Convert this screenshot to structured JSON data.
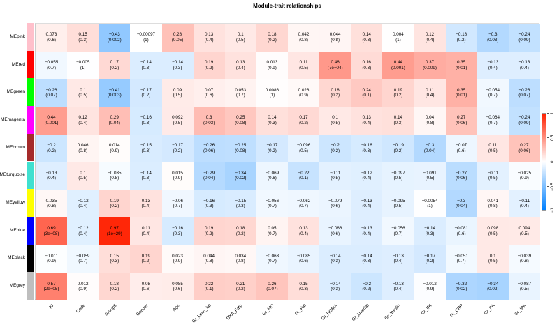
{
  "chart_data": {
    "type": "heatmap",
    "title": "Module-trait relationships",
    "rows": [
      "MEpink",
      "MEred",
      "MEgreen",
      "MEmagenta",
      "MEbrown",
      "MEturquoise",
      "MEyellow",
      "MEblue",
      "MEblack",
      "MEgrey"
    ],
    "row_colors": [
      "#FFC0CB",
      "#FF0000",
      "#00FF00",
      "#FF00FF",
      "#A52A2A",
      "#40E0D0",
      "#FFFF00",
      "#0000FF",
      "#000000",
      "#BEBEBE"
    ],
    "columns": [
      "ID",
      "Code",
      "Group5",
      "Gender",
      "Age",
      "Gr_Lean_fat",
      "DXA_Fatp",
      "Gr_MD",
      "Gr_Fat",
      "Gr_HOMA",
      "Gr_Liverfat",
      "Gr_Insulin",
      "Gr_IRI",
      "Gr_CRP",
      "Gr_PA",
      "Gr_IPA"
    ],
    "values": [
      [
        0.073,
        0.15,
        -0.43,
        -0.00097,
        0.28,
        0.13,
        0.1,
        0.18,
        0.042,
        0.044,
        0.14,
        0.004,
        0.12,
        -0.18,
        -0.3,
        -0.24
      ],
      [
        -0.055,
        -0.005,
        0.17,
        -0.14,
        -0.14,
        0.19,
        0.13,
        0.013,
        0.11,
        0.46,
        0.16,
        0.44,
        0.37,
        0.35,
        -0.13,
        -0.13
      ],
      [
        -0.26,
        0.1,
        -0.41,
        -0.17,
        0.09,
        0.07,
        0.053,
        0.0086,
        0.026,
        0.18,
        0.24,
        0.19,
        0.11,
        0.35,
        -0.054,
        -0.26
      ],
      [
        0.44,
        0.12,
        0.29,
        -0.16,
        0.092,
        0.3,
        0.25,
        0.14,
        0.17,
        0.1,
        0.13,
        0.14,
        0.04,
        0.27,
        -0.064,
        -0.24
      ],
      [
        -0.2,
        0.046,
        0.014,
        -0.15,
        -0.17,
        -0.26,
        -0.25,
        -0.17,
        -0.096,
        -0.2,
        -0.16,
        -0.19,
        -0.3,
        -0.07,
        0.11,
        0.27
      ],
      [
        -0.13,
        0.1,
        -0.035,
        -0.14,
        0.015,
        -0.29,
        -0.34,
        -0.069,
        -0.22,
        -0.11,
        -0.12,
        -0.097,
        -0.091,
        -0.27,
        -0.11,
        -0.025
      ],
      [
        0.035,
        -0.12,
        0.19,
        0.13,
        -0.06,
        -0.16,
        -0.15,
        -0.056,
        -0.062,
        -0.079,
        -0.13,
        -0.095,
        -0.0054,
        -0.3,
        0.041,
        -0.11
      ],
      [
        0.69,
        -0.12,
        0.97,
        0.11,
        -0.16,
        0.19,
        0.18,
        0.05,
        0.13,
        -0.086,
        -0.13,
        -0.056,
        -0.14,
        -0.081,
        0.098,
        0.094
      ],
      [
        -0.011,
        -0.059,
        0.15,
        0.19,
        0.023,
        0.044,
        0.034,
        -0.063,
        -0.085,
        -0.14,
        -0.14,
        -0.13,
        -0.17,
        -0.051,
        0.1,
        -0.039
      ],
      [
        0.57,
        0.012,
        0.18,
        0.08,
        0.085,
        0.22,
        0.21,
        0.26,
        0.15,
        -0.14,
        -0.2,
        -0.13,
        -0.012,
        -0.32,
        -0.34,
        -0.087
      ]
    ],
    "pvalues": [
      [
        "0.6",
        "0.3",
        "0.002",
        "1",
        "0.05",
        "0.4",
        "0.5",
        "0.2",
        "0.8",
        "0.8",
        "0.3",
        "1",
        "0.4",
        "0.2",
        "0.03",
        "0.09"
      ],
      [
        "0.7",
        "1",
        "0.2",
        "0.3",
        "0.3",
        "0.2",
        "0.4",
        "0.9",
        "0.5",
        "7e-04",
        "0.3",
        "0.001",
        "0.009",
        "0.01",
        "0.4",
        "0.4"
      ],
      [
        "0.07",
        "0.5",
        "0.003",
        "0.2",
        "0.5",
        "0.6",
        "0.7",
        "1",
        "0.9",
        "0.2",
        "0.1",
        "0.2",
        "0.4",
        "0.01",
        "0.7",
        "0.07"
      ],
      [
        "0.001",
        "0.4",
        "0.04",
        "0.3",
        "0.5",
        "0.03",
        "0.08",
        "0.3",
        "0.2",
        "0.5",
        "0.4",
        "0.3",
        "0.8",
        "0.06",
        "0.7",
        "0.09"
      ],
      [
        "0.2",
        "0.8",
        "0.9",
        "0.3",
        "0.2",
        "0.06",
        "0.08",
        "0.2",
        "0.5",
        "0.2",
        "0.3",
        "0.2",
        "0.04",
        "0.6",
        "0.5",
        "0.06"
      ],
      [
        "0.4",
        "0.5",
        "0.8",
        "0.3",
        "0.9",
        "0.04",
        "0.02",
        "0.6",
        "0.1",
        "0.5",
        "0.4",
        "0.5",
        "0.5",
        "0.06",
        "0.5",
        "0.9"
      ],
      [
        "0.8",
        "0.4",
        "0.2",
        "0.4",
        "0.7",
        "0.3",
        "0.3",
        "0.7",
        "0.7",
        "0.6",
        "0.4",
        "0.5",
        "1",
        "0.04",
        "0.8",
        "0.4"
      ],
      [
        "3e-08",
        "0.4",
        "1e-29",
        "0.4",
        "0.3",
        "0.2",
        "0.2",
        "0.7",
        "0.4",
        "0.6",
        "0.4",
        "0.7",
        "0.3",
        "0.6",
        "0.5",
        "0.5"
      ],
      [
        "0.9",
        "0.7",
        "0.3",
        "0.2",
        "0.9",
        "0.8",
        "0.8",
        "0.7",
        "0.6",
        "0.3",
        "0.3",
        "0.4",
        "0.2",
        "0.7",
        "0.5",
        "0.8"
      ],
      [
        "2e-05",
        "0.9",
        "0.2",
        "0.6",
        "0.6",
        "0.1",
        "0.2",
        "0.07",
        "0.3",
        "0.3",
        "0.2",
        "0.4",
        "0.9",
        "0.02",
        "0.02",
        "0.5"
      ]
    ],
    "color_scale": {
      "min": -1,
      "max": 1,
      "low": "#0080FF",
      "mid": "#FFFFFF",
      "high": "#FF2000"
    },
    "colorbar_ticks": [
      "1",
      "0.5",
      "0",
      "-0.5",
      "-1"
    ],
    "legend": "right"
  }
}
